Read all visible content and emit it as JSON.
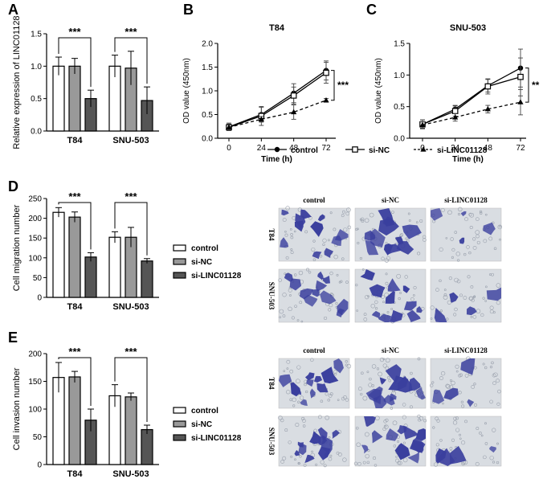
{
  "figure": {
    "legend_line": [
      {
        "label": "control",
        "marker": "circle",
        "dash": false
      },
      {
        "label": "si-NC",
        "marker": "square",
        "dash": false
      },
      {
        "label": "si-LINC01128",
        "marker": "triangle",
        "dash": true
      }
    ],
    "legend_bar": [
      "control",
      "si-NC",
      "si-LINC01128"
    ]
  },
  "colors": {
    "control": "#ffffff",
    "si-NC": "#999999",
    "si-LINC01128": "#555555",
    "stain": "#3a3f9e",
    "stain_bg": "#d9dde2"
  },
  "chart_data": [
    {
      "panel": "A",
      "type": "bar",
      "ylabel": "Relative expression of LINC01128",
      "categories": [
        "T84",
        "SNU-503"
      ],
      "ylim": [
        0,
        1.5
      ],
      "yticks": [
        "0.0",
        "0.5",
        "1.0",
        "1.5"
      ],
      "series": [
        {
          "name": "control",
          "values": [
            1.0,
            1.0
          ],
          "errors": [
            0.14,
            0.17
          ]
        },
        {
          "name": "si-NC",
          "values": [
            1.0,
            0.97
          ],
          "errors": [
            0.12,
            0.26
          ]
        },
        {
          "name": "si-LINC01128",
          "values": [
            0.5,
            0.47
          ],
          "errors": [
            0.13,
            0.21
          ]
        }
      ],
      "significance": [
        "***",
        "***"
      ]
    },
    {
      "panel": "B",
      "type": "line",
      "title": "T84",
      "xlabel": "Time (h)",
      "ylabel": "OD value (450nm)",
      "x": [
        0,
        24,
        48,
        72
      ],
      "xticks": [
        "0",
        "24",
        "48",
        "72"
      ],
      "ylim": [
        0,
        2.0
      ],
      "yticks": [
        "0.0",
        "0.5",
        "1.0",
        "1.5",
        "2.0"
      ],
      "series": [
        {
          "name": "control",
          "values": [
            0.24,
            0.5,
            0.95,
            1.43
          ],
          "errors": [
            0.08,
            0.15,
            0.2,
            0.2
          ]
        },
        {
          "name": "si-NC",
          "values": [
            0.23,
            0.47,
            0.9,
            1.38
          ],
          "errors": [
            0.07,
            0.2,
            0.18,
            0.22
          ]
        },
        {
          "name": "si-LINC01128",
          "values": [
            0.23,
            0.4,
            0.55,
            0.8
          ],
          "errors": [
            0.05,
            0.06,
            0.15,
            0.04
          ]
        }
      ],
      "significance": "***"
    },
    {
      "panel": "C",
      "type": "line",
      "title": "SNU-503",
      "xlabel": "Time (h)",
      "ylabel": "OD value (450nm)",
      "x": [
        0,
        24,
        48,
        72
      ],
      "xticks": [
        "0",
        "24",
        "48",
        "72"
      ],
      "ylim": [
        0,
        1.5
      ],
      "yticks": [
        "0.0",
        "0.5",
        "1.0",
        "1.5"
      ],
      "series": [
        {
          "name": "control",
          "values": [
            0.22,
            0.46,
            0.83,
            1.11
          ],
          "errors": [
            0.07,
            0.06,
            0.1,
            0.3
          ]
        },
        {
          "name": "si-NC",
          "values": [
            0.22,
            0.43,
            0.82,
            0.97
          ],
          "errors": [
            0.07,
            0.08,
            0.12,
            0.3
          ]
        },
        {
          "name": "si-LINC01128",
          "values": [
            0.21,
            0.33,
            0.46,
            0.57
          ],
          "errors": [
            0.05,
            0.06,
            0.06,
            0.2
          ]
        }
      ],
      "significance": "**"
    },
    {
      "panel": "D",
      "type": "bar",
      "ylabel": "Cell migration number",
      "categories": [
        "T84",
        "SNU-503"
      ],
      "ylim": [
        0,
        250
      ],
      "yticks": [
        "0",
        "50",
        "100",
        "150",
        "200",
        "250"
      ],
      "series": [
        {
          "name": "control",
          "values": [
            215,
            152
          ],
          "errors": [
            12,
            14
          ]
        },
        {
          "name": "si-NC",
          "values": [
            203,
            152
          ],
          "errors": [
            13,
            25
          ]
        },
        {
          "name": "si-LINC01128",
          "values": [
            102,
            92
          ],
          "errors": [
            11,
            6
          ]
        }
      ],
      "significance": [
        "***",
        "***"
      ]
    },
    {
      "panel": "E",
      "type": "bar",
      "ylabel": "Cell invasion number",
      "categories": [
        "T84",
        "SNU-503"
      ],
      "ylim": [
        0,
        200
      ],
      "yticks": [
        "0",
        "50",
        "100",
        "150",
        "200"
      ],
      "series": [
        {
          "name": "control",
          "values": [
            157,
            124
          ],
          "errors": [
            27,
            20
          ]
        },
        {
          "name": "si-NC",
          "values": [
            158,
            122
          ],
          "errors": [
            10,
            7
          ]
        },
        {
          "name": "si-LINC01128",
          "values": [
            80,
            63
          ],
          "errors": [
            20,
            8
          ]
        }
      ],
      "significance": [
        "***",
        "***"
      ]
    }
  ],
  "micrographs": [
    {
      "panel": "D",
      "columns": [
        "control",
        "si-NC",
        "si-LINC01128"
      ],
      "rows": [
        "T84",
        "SNU-503"
      ]
    },
    {
      "panel": "E",
      "columns": [
        "control",
        "si-NC",
        "si-LINC01128"
      ],
      "rows": [
        "T84",
        "SNU-503"
      ]
    }
  ]
}
